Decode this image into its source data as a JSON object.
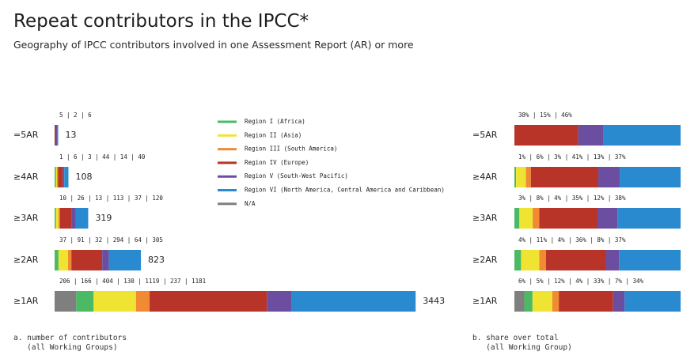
{
  "title": "Repeat contributors in the IPCC*",
  "subtitle": "Geography of IPCC contributors involved in one Assessment Report (AR) or more",
  "colors": {
    "na": "#7f7f7f",
    "africa": "#4cb964",
    "asia": "#f0e433",
    "south_america": "#f08a33",
    "europe": "#b83428",
    "sw_pacific": "#6b4ea0",
    "north_america": "#2a8ad0"
  },
  "legend": [
    {
      "label": "Region I (Africa)",
      "key": "africa"
    },
    {
      "label": "Region II (Asia)",
      "key": "asia"
    },
    {
      "label": "Region III (South America)",
      "key": "south_america"
    },
    {
      "label": "Region IV (Europe)",
      "key": "europe"
    },
    {
      "label": "Region V (South-West Pacific)",
      "key": "sw_pacific"
    },
    {
      "label": "Region VI (North America, Central America and Caribbean)",
      "key": "north_america"
    },
    {
      "label": "N/A",
      "key": "na"
    }
  ],
  "footnotes": {
    "left_line1": "a. number of contributors",
    "left_line2": "   (all Working Groups)",
    "right_line1": "b. share over total",
    "right_line2": "   (all Working Group)"
  },
  "chart_data": [
    {
      "type": "bar",
      "orientation": "horizontal",
      "stacked": true,
      "subtitle": "a. number of contributors (all Working Groups)",
      "categories": [
        "=5AR",
        "≥4AR",
        "≥3AR",
        "≥2AR",
        "≥1AR"
      ],
      "series_keys": [
        "na",
        "africa",
        "asia",
        "south_america",
        "europe",
        "sw_pacific",
        "north_america"
      ],
      "values": [
        [
          0,
          0,
          0,
          0,
          5,
          2,
          6
        ],
        [
          0,
          1,
          6,
          3,
          44,
          14,
          40
        ],
        [
          0,
          10,
          26,
          13,
          113,
          37,
          120
        ],
        [
          0,
          37,
          91,
          32,
          294,
          64,
          305
        ],
        [
          206,
          166,
          404,
          130,
          1119,
          237,
          1181
        ]
      ],
      "segment_labels": [
        "5 | 2 | 6",
        "1 | 6 | 3 | 44 | 14 | 40",
        "10 | 26 | 13 | 113 | 37 | 120",
        "37 | 91 | 32 | 294 | 64 | 305",
        "206 | 166 | 404 | 130 | 1119 | 237 | 1181"
      ],
      "totals": [
        "13",
        "108",
        "319",
        "823",
        "3443"
      ]
    },
    {
      "type": "bar",
      "orientation": "horizontal",
      "stacked": true,
      "subtitle": "b. share over total (all Working Group)",
      "categories": [
        "=5AR",
        "≥4AR",
        "≥3AR",
        "≥2AR",
        "≥1AR"
      ],
      "series_keys": [
        "na",
        "africa",
        "asia",
        "south_america",
        "europe",
        "sw_pacific",
        "north_america"
      ],
      "values": [
        [
          0,
          0,
          0,
          0,
          38,
          15,
          46
        ],
        [
          0,
          1,
          6,
          3,
          41,
          13,
          37
        ],
        [
          0,
          3,
          8,
          4,
          35,
          12,
          38
        ],
        [
          0,
          4,
          11,
          4,
          36,
          8,
          37
        ],
        [
          6,
          5,
          12,
          4,
          33,
          7,
          34
        ]
      ],
      "segment_labels": [
        "38% | 15% | 46%",
        "1% | 6% | 3% | 41% | 13% | 37%",
        "3% | 8% | 4% | 35% | 12% | 38%",
        "4% | 11% | 4% | 36% | 8% | 37%",
        "6% | 5% | 12% | 4% | 33% | 7% | 34%"
      ]
    }
  ]
}
